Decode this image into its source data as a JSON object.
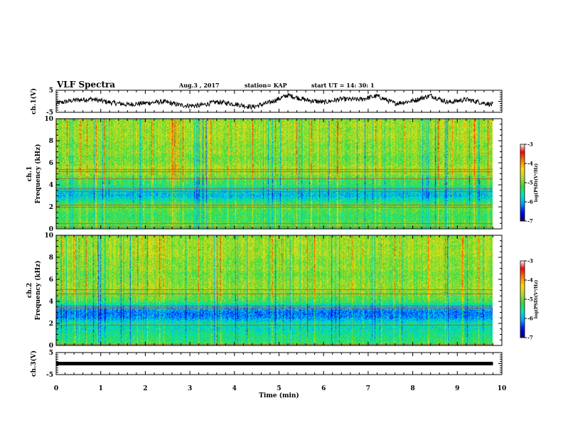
{
  "header": {
    "title": "VLF Spectra",
    "date": "Aug.3  , 2017",
    "station": "station= KAP",
    "start": "start  UT  =   14: 30: 1"
  },
  "colorbar": {
    "label": "log(PSD)(V²/Hz)",
    "min": -7,
    "max": -3,
    "ticks": [
      "-3",
      "-4",
      "-5",
      "-6",
      "-7"
    ]
  },
  "colors": {
    "scale": [
      "#000066",
      "#0000ff",
      "#00a0ff",
      "#00e6c8",
      "#32dc32",
      "#b4dc32",
      "#ffdc00",
      "#ff8000",
      "#ff0000",
      "#ffffff"
    ]
  },
  "chart_data": [
    {
      "type": "line",
      "panel": "ch1-waveform",
      "ylabel": "ch.1(V)",
      "ylim": [
        -5,
        5
      ],
      "yticks": [
        "5",
        "-5"
      ],
      "xlim": [
        0,
        10
      ],
      "x_end": 9.8,
      "series": [
        {
          "x": [
            0,
            0.4,
            0.8,
            1.2,
            1.6,
            2.0,
            2.4,
            2.8,
            3.2,
            3.6,
            4.0,
            4.4,
            4.8,
            5.2,
            5.6,
            6.0,
            6.4,
            6.8,
            7.2,
            7.6,
            8.0,
            8.4,
            8.8,
            9.2,
            9.6,
            9.8
          ],
          "y": [
            -1.0,
            0.5,
            1.0,
            -0.5,
            -1.5,
            -0.8,
            -0.2,
            -1.8,
            -2.0,
            -0.3,
            -1.2,
            -2.6,
            -0.5,
            2.8,
            0.6,
            -0.5,
            1.0,
            0.8,
            2.4,
            -1.0,
            0.2,
            2.6,
            -0.5,
            0.8,
            -0.8,
            -1.5
          ]
        }
      ]
    },
    {
      "type": "heatmap",
      "panel": "ch1-spectrogram",
      "ylabel": "ch.1\nFrequency (kHz)",
      "ylim": [
        0,
        10
      ],
      "yticks": [
        "0",
        "2",
        "4",
        "6",
        "8",
        "10"
      ],
      "xlim": [
        0,
        10
      ],
      "x_end": 9.8,
      "log_psd_by_frequency_khz": {
        "freq": [
          0,
          0.5,
          1,
          1.5,
          2,
          2.5,
          3,
          3.5,
          4,
          4.5,
          5,
          5.5,
          6,
          6.5,
          7,
          7.5,
          8,
          8.5,
          9,
          9.5,
          10
        ],
        "log_psd": [
          -5.0,
          -4.9,
          -5.1,
          -5.0,
          -4.8,
          -5.3,
          -5.8,
          -5.6,
          -5.1,
          -5.0,
          -4.6,
          -4.5,
          -4.7,
          -4.8,
          -4.6,
          -4.7,
          -4.6,
          -4.5,
          -4.6,
          -4.5,
          -4.7
        ]
      },
      "bands_khz": [
        0.2,
        0.5,
        2.0,
        2.2,
        3.4,
        3.7,
        4.6,
        5.2,
        5.4
      ]
    },
    {
      "type": "heatmap",
      "panel": "ch2-spectrogram",
      "ylabel": "ch.2\nFrequency (kHz)",
      "ylim": [
        0,
        10
      ],
      "yticks": [
        "0",
        "2",
        "4",
        "6",
        "8",
        "10"
      ],
      "xlim": [
        0,
        10
      ],
      "x_end": 9.8,
      "log_psd_by_frequency_khz": {
        "freq": [
          0,
          0.5,
          1,
          1.5,
          2,
          2.5,
          3,
          3.5,
          4,
          4.5,
          5,
          5.5,
          6,
          6.5,
          7,
          7.5,
          8,
          8.5,
          9,
          9.5,
          10
        ],
        "log_psd": [
          -5.0,
          -5.2,
          -5.3,
          -5.5,
          -5.4,
          -6.0,
          -6.1,
          -5.7,
          -5.0,
          -4.8,
          -4.6,
          -4.6,
          -4.7,
          -4.8,
          -4.6,
          -4.7,
          -4.6,
          -4.5,
          -4.6,
          -4.5,
          -4.7
        ]
      },
      "bands_khz": [
        0.1,
        1.9,
        3.4,
        3.6,
        4.7,
        5.1
      ]
    },
    {
      "type": "line",
      "panel": "ch3-waveform",
      "ylabel": "ch.3(V)",
      "ylim": [
        -5,
        5
      ],
      "yticks": [
        "5",
        "-5"
      ],
      "xlim": [
        0,
        10
      ],
      "x_end": 9.8,
      "series": [
        {
          "x": [
            0,
            9.8
          ],
          "y": [
            0,
            0
          ]
        }
      ]
    }
  ],
  "xaxis": {
    "label": "Time  (min)",
    "ticks": [
      "0",
      "1",
      "2",
      "3",
      "4",
      "5",
      "6",
      "7",
      "8",
      "9",
      "10"
    ]
  }
}
